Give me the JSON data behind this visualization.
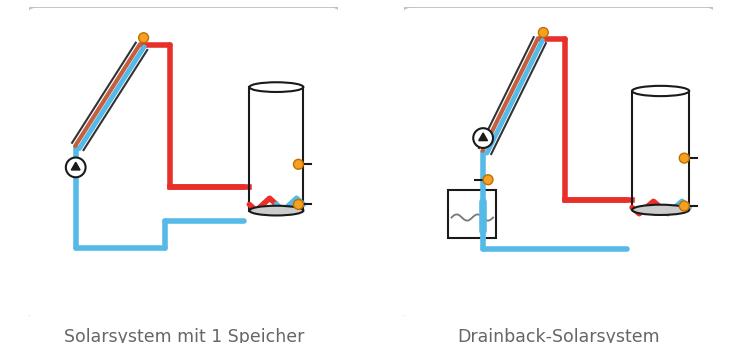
{
  "fig_width": 7.5,
  "fig_height": 3.43,
  "dpi": 100,
  "bg_color": "#ffffff",
  "red": "#e8302a",
  "blue": "#55bae8",
  "orange": "#f5a020",
  "black": "#1a1a1a",
  "gray": "#888888",
  "label1": "Solarsystem mit 1 Speicher",
  "label2": "Drainback-Solarsystem",
  "label_fontsize": 12.5,
  "label_color": "#666666"
}
